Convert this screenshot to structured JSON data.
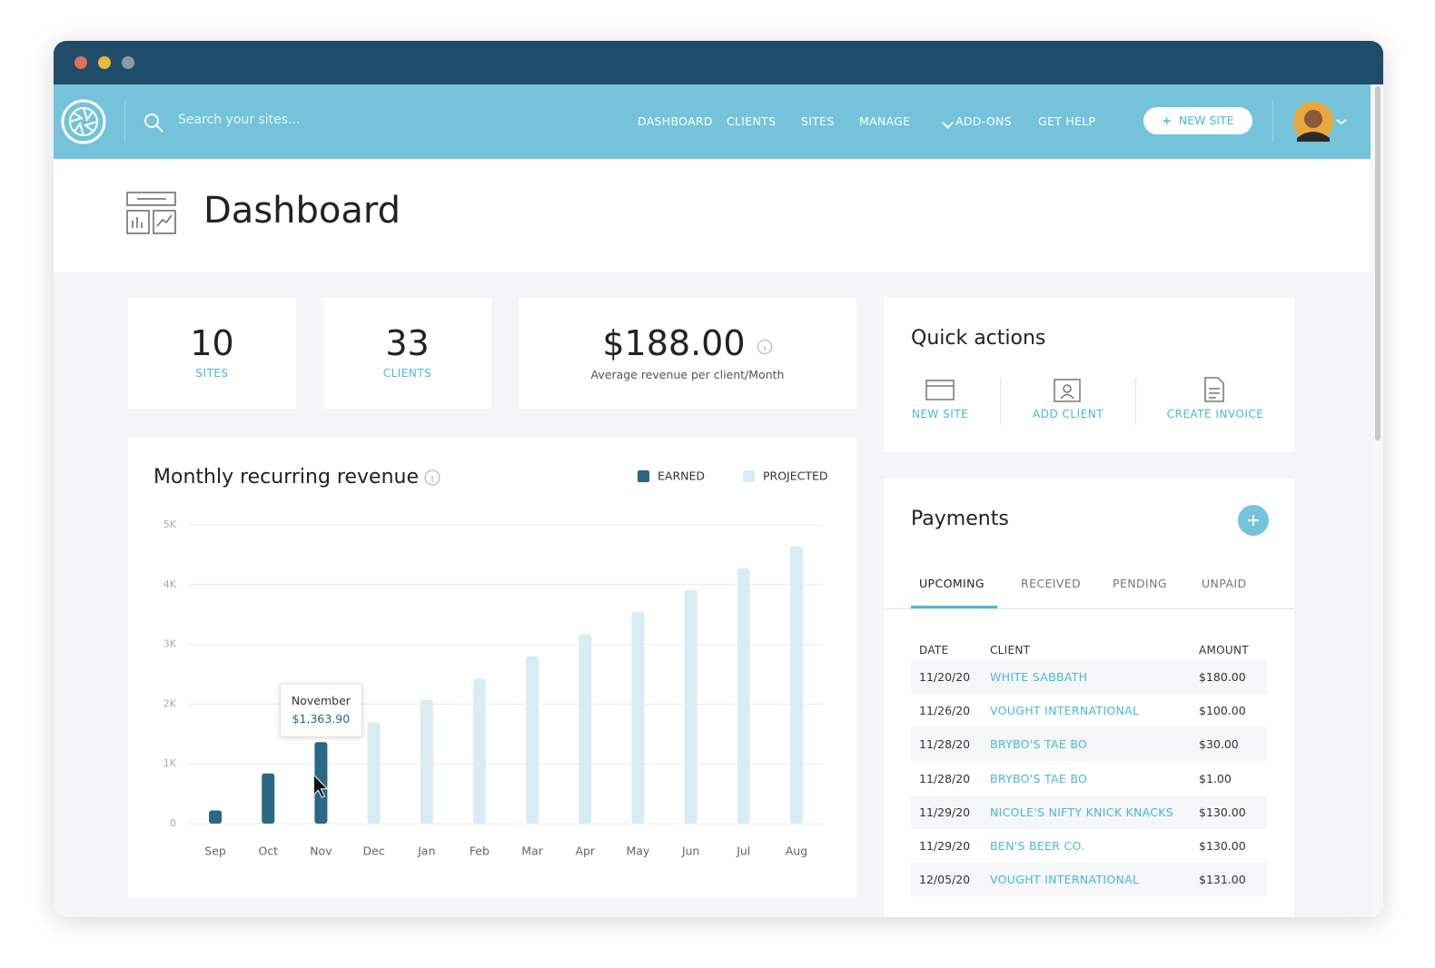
{
  "window": {
    "search_placeholder": "Search your sites...",
    "nav": [
      "DASHBOARD",
      "CLIENTS",
      "SITES",
      "MANAGE",
      "ADD-ONS",
      "GET HELP"
    ],
    "new_site_button": "NEW SITE"
  },
  "page_title": "Dashboard",
  "stats": [
    {
      "value": "10",
      "label": "SITES"
    },
    {
      "value": "33",
      "label": "CLIENTS"
    },
    {
      "value": "$188.00",
      "label": "Average revenue per client/Month"
    }
  ],
  "quick_actions": {
    "title": "Quick actions",
    "actions": [
      "NEW SITE",
      "ADD CLIENT",
      "CREATE INVOICE"
    ]
  },
  "payments": {
    "title": "Payments",
    "tabs": [
      "UPCOMING",
      "RECEIVED",
      "PENDING",
      "UNPAID"
    ],
    "columns": [
      "DATE",
      "CLIENT",
      "AMOUNT"
    ],
    "rows": [
      [
        "11/20/20",
        "WHITE SABBATH",
        "$180.00"
      ],
      [
        "11/26/20",
        "VOUGHT INTERNATIONAL",
        "$100.00"
      ],
      [
        "11/28/20",
        "BRYBO'S TAE BO",
        "$30.00"
      ],
      [
        "11/28/20",
        "BRYBO'S TAE BO",
        "$1.00"
      ],
      [
        "11/29/20",
        "NICOLE'S NIFTY KNICK KNACKS",
        "$130.00"
      ],
      [
        "11/29/20",
        "BEN'S BEER CO.",
        "$130.00"
      ],
      [
        "12/05/20",
        "VOUGHT INTERNATIONAL",
        "$131.00"
      ]
    ]
  },
  "chart_data": {
    "type": "bar",
    "title": "Monthly recurring revenue",
    "categories": [
      "Sep",
      "Oct",
      "Nov",
      "Dec",
      "Jan",
      "Feb",
      "Mar",
      "Apr",
      "May",
      "Jun",
      "Jul",
      "Aug"
    ],
    "series": [
      {
        "name": "EARNED",
        "color": "#2b6885",
        "values": [
          220,
          840,
          1363.9,
          null,
          null,
          null,
          null,
          null,
          null,
          null,
          null,
          null
        ],
        "value_labels": [
          null,
          null,
          "$1,363.90",
          null,
          null,
          null,
          null,
          null,
          null,
          null,
          null,
          null
        ]
      },
      {
        "name": "PROJECTED",
        "color": "#d8ecf3",
        "values": [
          null,
          null,
          null,
          1690,
          2070,
          2420,
          2800,
          3170,
          3540,
          3910,
          4270,
          4640
        ]
      }
    ],
    "tooltip_title": "November",
    "ylim": [
      0,
      5000
    ],
    "yticks": [
      0,
      {
        "value": 1000,
        "label": "1K"
      },
      {
        "value": 2000,
        "label": "2K"
      },
      {
        "value": 3000,
        "label": "3K"
      },
      {
        "value": 4000,
        "label": "4K"
      },
      {
        "value": 5000,
        "label": "5K"
      }
    ],
    "grid": true,
    "legend": "top-right"
  }
}
